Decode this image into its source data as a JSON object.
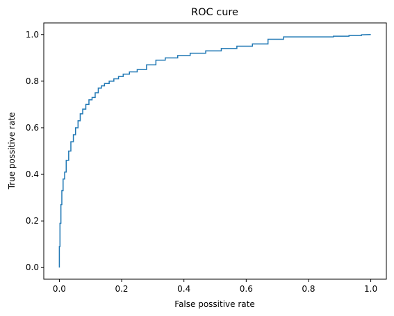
{
  "chart_data": {
    "type": "line",
    "title": "ROC cure",
    "xlabel": "False possitive rate",
    "ylabel": "True possitive rate",
    "xlim": [
      -0.05,
      1.05
    ],
    "ylim": [
      -0.05,
      1.05
    ],
    "xticks": [
      0.0,
      0.2,
      0.4,
      0.6,
      0.8,
      1.0
    ],
    "yticks": [
      0.0,
      0.2,
      0.4,
      0.6,
      0.8,
      1.0
    ],
    "xtick_labels": [
      "0.0",
      "0.2",
      "0.4",
      "0.6",
      "0.8",
      "1.0"
    ],
    "ytick_labels": [
      "0.0",
      "0.2",
      "0.4",
      "0.6",
      "0.8",
      "1.0"
    ],
    "grid": false,
    "legend": "none",
    "series": [
      {
        "color": "#1f77b4",
        "x": [
          0.0,
          0.0,
          0.002,
          0.002,
          0.005,
          0.005,
          0.008,
          0.008,
          0.012,
          0.012,
          0.017,
          0.017,
          0.022,
          0.022,
          0.03,
          0.03,
          0.037,
          0.037,
          0.045,
          0.045,
          0.052,
          0.052,
          0.06,
          0.06,
          0.067,
          0.067,
          0.075,
          0.075,
          0.085,
          0.085,
          0.095,
          0.095,
          0.105,
          0.105,
          0.115,
          0.115,
          0.125,
          0.125,
          0.135,
          0.135,
          0.145,
          0.145,
          0.16,
          0.16,
          0.175,
          0.175,
          0.19,
          0.19,
          0.205,
          0.205,
          0.225,
          0.225,
          0.25,
          0.25,
          0.28,
          0.28,
          0.31,
          0.31,
          0.34,
          0.34,
          0.38,
          0.38,
          0.42,
          0.42,
          0.47,
          0.47,
          0.52,
          0.52,
          0.57,
          0.57,
          0.62,
          0.62,
          0.67,
          0.67,
          0.72,
          0.72,
          0.88,
          0.88,
          0.93,
          0.93,
          0.97,
          0.97,
          1.0
        ],
        "y": [
          0.0,
          0.09,
          0.09,
          0.19,
          0.19,
          0.27,
          0.27,
          0.33,
          0.33,
          0.38,
          0.38,
          0.41,
          0.41,
          0.46,
          0.46,
          0.5,
          0.5,
          0.54,
          0.54,
          0.57,
          0.57,
          0.6,
          0.6,
          0.63,
          0.63,
          0.66,
          0.66,
          0.68,
          0.68,
          0.7,
          0.7,
          0.72,
          0.72,
          0.73,
          0.73,
          0.75,
          0.75,
          0.77,
          0.77,
          0.78,
          0.78,
          0.79,
          0.79,
          0.8,
          0.8,
          0.81,
          0.81,
          0.82,
          0.82,
          0.83,
          0.83,
          0.84,
          0.84,
          0.85,
          0.85,
          0.87,
          0.87,
          0.89,
          0.89,
          0.9,
          0.9,
          0.91,
          0.91,
          0.92,
          0.92,
          0.93,
          0.93,
          0.94,
          0.94,
          0.95,
          0.95,
          0.96,
          0.96,
          0.98,
          0.98,
          0.99,
          0.99,
          0.993,
          0.993,
          0.996,
          0.996,
          0.999,
          1.0
        ]
      }
    ]
  }
}
